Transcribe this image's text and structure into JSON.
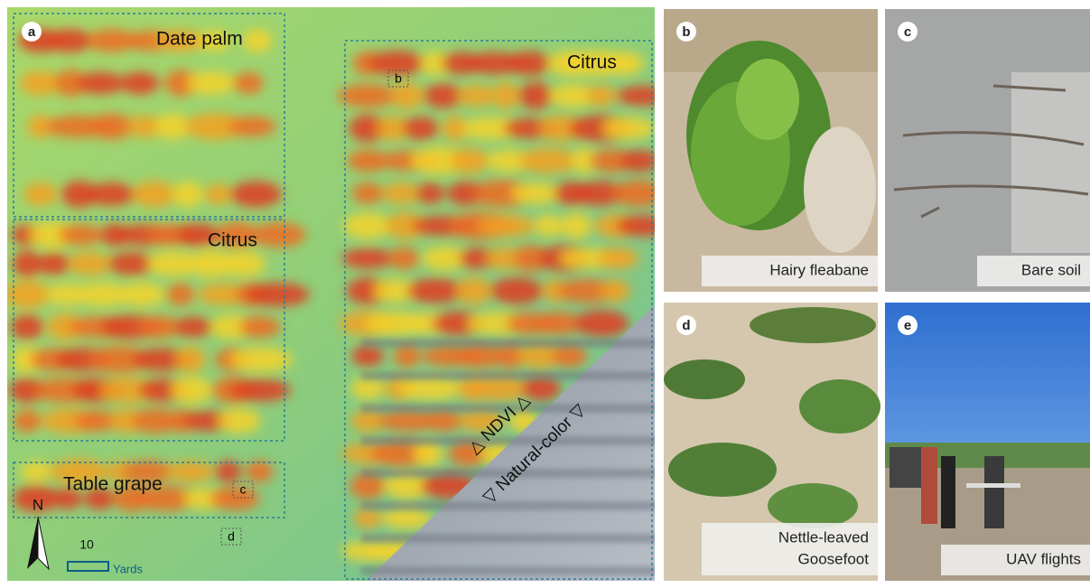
{
  "panel_a": {
    "label": "a",
    "fields": [
      "Date palm",
      "Citrus",
      "Citrus",
      "Table grape"
    ],
    "markers": [
      "b",
      "c",
      "d"
    ],
    "ndvi_label": "△ NDVI △",
    "natural_label": "▽ Natural-color ▽",
    "north": "N",
    "scale_value": 10,
    "scale_unit": "Yards"
  },
  "photos": [
    {
      "label": "b",
      "caption": [
        "Hairy fleabane"
      ]
    },
    {
      "label": "c",
      "caption": [
        "Bare soil"
      ]
    },
    {
      "label": "d",
      "caption": [
        "Nettle-leaved",
        "Goosefoot"
      ]
    },
    {
      "label": "e",
      "caption": [
        "UAV flights"
      ]
    }
  ]
}
